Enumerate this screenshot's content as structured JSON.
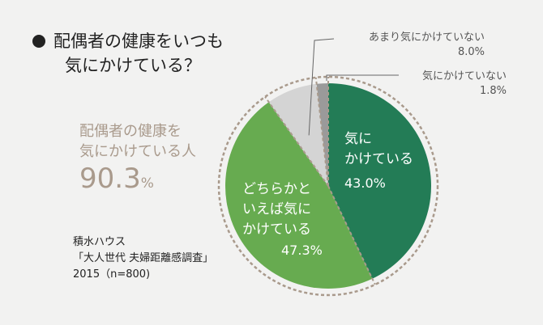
{
  "title": {
    "line1": "配偶者の健康をいつも",
    "line2": "気にかけている？"
  },
  "summary": {
    "line1": "配偶者の健康を",
    "line2": "気にかけている人",
    "value": "90.3",
    "unit": "%"
  },
  "source": {
    "line1": "積水ハウス",
    "line2": "「大人世代 夫婦距離感調査」",
    "line3": "2015（n=800)"
  },
  "chart_data": {
    "type": "pie",
    "start": "top",
    "direction": "clockwise",
    "slices": [
      {
        "label_lines": [
          "気に",
          "かけている"
        ],
        "value": 43.0,
        "display": "43.0%",
        "color": "#237c56"
      },
      {
        "label_lines": [
          "どちらかと",
          "いえば気に",
          "かけている"
        ],
        "value": 47.3,
        "display": "47.3%",
        "color": "#67ab50"
      },
      {
        "label": "あまり気にかけていない",
        "value": 8.0,
        "display": "8.0%",
        "color": "#d4d4d4"
      },
      {
        "label": "気にかけていない",
        "value": 1.8,
        "display": "1.8%",
        "color": "#9a9a9a"
      }
    ],
    "separator_color": "#a99a8c"
  }
}
